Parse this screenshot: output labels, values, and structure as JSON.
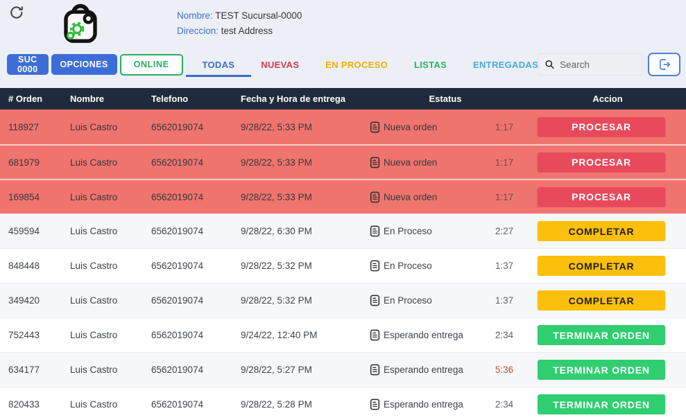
{
  "header": {
    "nombre_label": "Nombre:",
    "nombre_value": "TEST Sucursal-0000",
    "direccion_label": "Direccion:",
    "direccion_value": "test Address",
    "suc_button": "SUC 0000",
    "opciones_button": "OPCIONES",
    "online_button": "ONLINE",
    "search_placeholder": "Search"
  },
  "tabs": [
    {
      "label": "TODAS",
      "color": "#3a6cc8",
      "active": true
    },
    {
      "label": "NUEVAS",
      "color": "#ce3a50",
      "active": false
    },
    {
      "label": "EN PROCESO",
      "color": "#efae00",
      "active": false
    },
    {
      "label": "LISTAS",
      "color": "#25b35c",
      "active": false
    },
    {
      "label": "ENTREGADAS",
      "color": "#46a8dd",
      "active": false
    }
  ],
  "table": {
    "columns": [
      "# Orden",
      "Nombre",
      "Telefono",
      "Fecha y Hora de entrega",
      "Estatus",
      "Accion"
    ],
    "rows": [
      {
        "order": "118927",
        "name": "Luis Castro",
        "phone": "6562019074",
        "datetime": "9/28/22, 5:33 PM",
        "status": "Nueva orden",
        "timer": "1:17",
        "timer_alert": false,
        "action": "PROCESAR",
        "variant": "new"
      },
      {
        "order": "681979",
        "name": "Luis Castro",
        "phone": "6562019074",
        "datetime": "9/28/22, 5:33 PM",
        "status": "Nueva orden",
        "timer": "1:17",
        "timer_alert": false,
        "action": "PROCESAR",
        "variant": "new"
      },
      {
        "order": "169854",
        "name": "Luis Castro",
        "phone": "6562019074",
        "datetime": "9/28/22, 5:33 PM",
        "status": "Nueva orden",
        "timer": "1:17",
        "timer_alert": false,
        "action": "PROCESAR",
        "variant": "new"
      },
      {
        "order": "459594",
        "name": "Luis Castro",
        "phone": "6562019074",
        "datetime": "9/28/22, 6:30 PM",
        "status": "En Proceso",
        "timer": "2:27",
        "timer_alert": false,
        "action": "COMPLETAR",
        "variant": "inprocess"
      },
      {
        "order": "848448",
        "name": "Luis Castro",
        "phone": "6562019074",
        "datetime": "9/28/22, 5:32 PM",
        "status": "En Proceso",
        "timer": "1:37",
        "timer_alert": false,
        "action": "COMPLETAR",
        "variant": "inprocess"
      },
      {
        "order": "349420",
        "name": "Luis Castro",
        "phone": "6562019074",
        "datetime": "9/28/22, 5:32 PM",
        "status": "En Proceso",
        "timer": "1:37",
        "timer_alert": false,
        "action": "COMPLETAR",
        "variant": "inprocess"
      },
      {
        "order": "752443",
        "name": "Luis Castro",
        "phone": "6562019074",
        "datetime": "9/24/22, 12:40 PM",
        "status": "Esperando entrega",
        "timer": "2:34",
        "timer_alert": false,
        "action": "TERMINAR ORDEN",
        "variant": "ready"
      },
      {
        "order": "634177",
        "name": "Luis Castro",
        "phone": "6562019074",
        "datetime": "9/28/22, 5:27 PM",
        "status": "Esperando entrega",
        "timer": "5:36",
        "timer_alert": true,
        "action": "TERMINAR ORDEN",
        "variant": "ready"
      },
      {
        "order": "820433",
        "name": "Luis Castro",
        "phone": "6562019074",
        "datetime": "9/28/22, 5:28 PM",
        "status": "Esperando entrega",
        "timer": "2:34",
        "timer_alert": false,
        "action": "TERMINAR ORDEN",
        "variant": "ready"
      }
    ]
  },
  "colors": {
    "accent_blue": "#3d6ed8",
    "header_navy": "#1f2b3d",
    "new_row_bg": "#f0746e",
    "procesar_btn": "#e84a5c",
    "completar_btn": "#fcbf0a",
    "terminar_btn": "#2fce70",
    "online_green": "#27ae60",
    "timer_alert": "#c4562e"
  }
}
